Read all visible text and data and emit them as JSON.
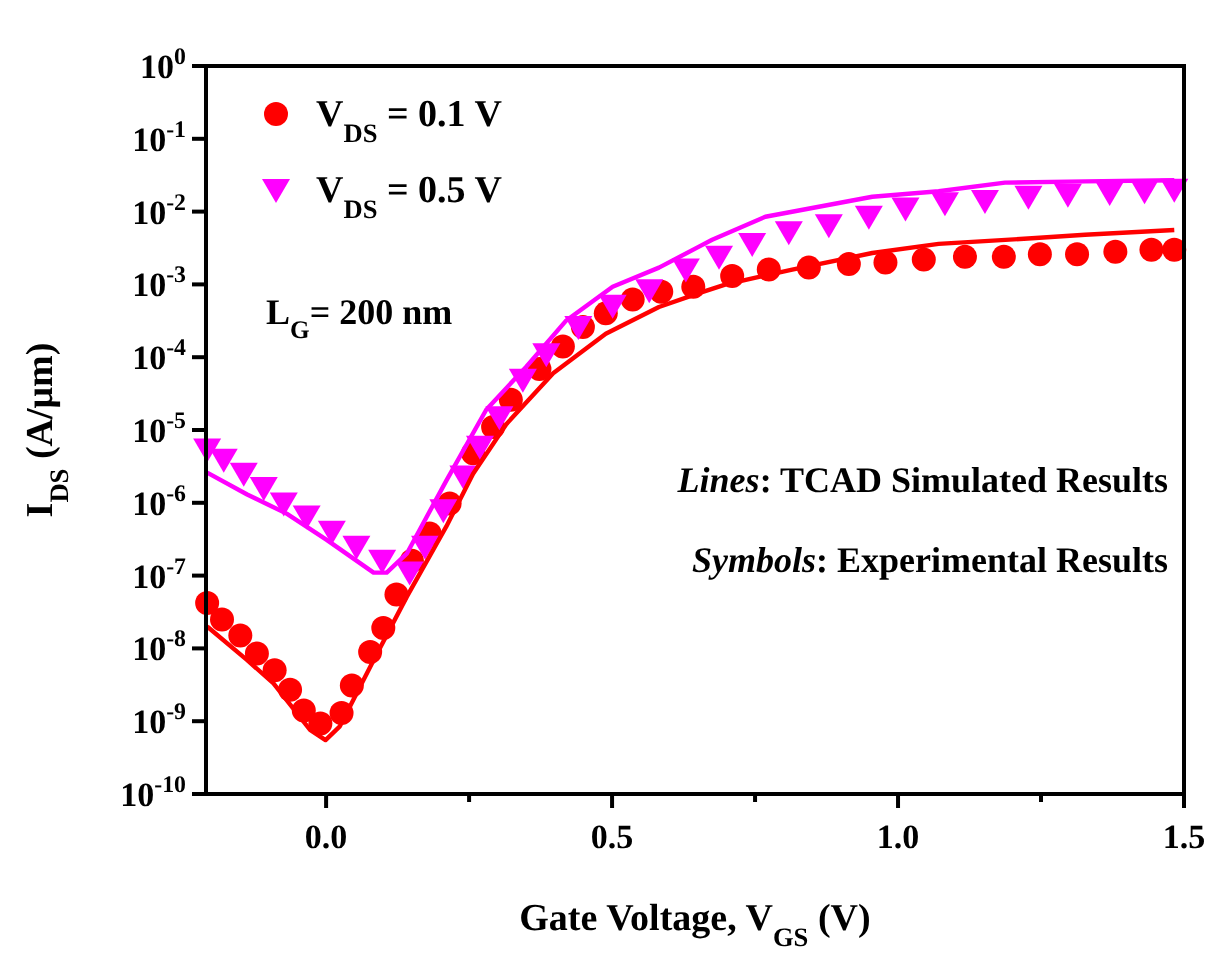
{
  "chart_data": {
    "type": "scatter",
    "xlabel": "Gate Voltage, V$_{GS}$ (V)",
    "ylabel": "I$_{DS}$ (A/μm)",
    "log": "y",
    "xlim": [
      -0.21,
      1.5
    ],
    "xticks": [
      {
        "value": 0,
        "label": "0.0"
      },
      {
        "value": 0.25,
        "label": null
      },
      {
        "value": 0.5,
        "label": "0.5"
      },
      {
        "value": 0.75,
        "label": null
      },
      {
        "value": 1,
        "label": "1.0"
      },
      {
        "value": 1.25,
        "label": null
      },
      {
        "value": 1.5,
        "label": "1.5"
      }
    ],
    "ylim": [
      1e-10,
      1
    ],
    "yticks": [
      {
        "value": 1,
        "label": "10$^{0}$"
      },
      {
        "value": 0.1,
        "label": "10$^{-1}$"
      },
      {
        "value": 0.01,
        "label": "10$^{-2}$"
      },
      {
        "value": 0.001,
        "label": "10$^{-3}$"
      },
      {
        "value": 0.0001,
        "label": "10$^{-4}$"
      },
      {
        "value": 1e-05,
        "label": "10$^{-5}$"
      },
      {
        "value": 1e-06,
        "label": "10$^{-6}$"
      },
      {
        "value": 1e-07,
        "label": "10$^{-7}$"
      },
      {
        "value": 1e-08,
        "label": "10$^{-8}$"
      },
      {
        "value": 1e-09,
        "label": "10$^{-9}$"
      },
      {
        "value": 1e-10,
        "label": "10$^{-10}$"
      }
    ],
    "grid": false,
    "legend": "top left",
    "annotations": [
      "L$_{G}$= 200 nm",
      "Lines: TCAD Simulated Results",
      "Symbols: Experimental Results"
    ],
    "series": [
      {
        "name": "V$_{DS}$ = 0.1 V",
        "marker": "circle",
        "color": "#ff0000",
        "x": [
          -0.208,
          -0.182,
          -0.15,
          -0.121,
          -0.09,
          -0.063,
          -0.039,
          -0.01,
          0.027,
          0.045,
          0.077,
          0.1,
          0.123,
          0.15,
          0.181,
          0.216,
          0.257,
          0.292,
          0.323,
          0.373,
          0.414,
          0.449,
          0.489,
          0.536,
          0.586,
          0.642,
          0.71,
          0.774,
          0.844,
          0.914,
          0.978,
          1.045,
          1.117,
          1.185,
          1.248,
          1.313,
          1.38,
          1.443,
          1.483
        ],
        "values": [
          4.2e-08,
          2.5e-08,
          1.5e-08,
          8.5e-09,
          5e-09,
          2.7e-09,
          1.4e-09,
          9.3e-10,
          1.3e-09,
          3.1e-09,
          8.9e-09,
          1.9e-08,
          5.5e-08,
          1.6e-07,
          3.8e-07,
          9.8e-07,
          4.8e-06,
          1.1e-05,
          2.6e-05,
          6.9e-05,
          0.00014,
          0.00026,
          0.0004,
          0.00062,
          0.00079,
          0.00093,
          0.0013,
          0.0016,
          0.0017,
          0.0019,
          0.002,
          0.0022,
          0.0024,
          0.0024,
          0.0026,
          0.0026,
          0.0028,
          0.003,
          0.003
        ]
      },
      {
        "name": "V$_{DS}$ = 0.5 V",
        "marker": "triangle",
        "color": "#ff00ff",
        "x": [
          -0.208,
          -0.179,
          -0.144,
          -0.109,
          -0.074,
          -0.034,
          0.01,
          0.053,
          0.098,
          0.146,
          0.173,
          0.205,
          0.24,
          0.269,
          0.303,
          0.344,
          0.385,
          0.441,
          0.501,
          0.565,
          0.629,
          0.687,
          0.745,
          0.809,
          0.879,
          0.949,
          1.013,
          1.082,
          1.152,
          1.228,
          1.297,
          1.37,
          1.431,
          1.483
        ],
        "values": [
          5.4e-06,
          3.9e-06,
          2.5e-06,
          1.6e-06,
          9.8e-07,
          6.5e-07,
          4e-07,
          2.5e-07,
          1.6e-07,
          1.1e-07,
          2.5e-07,
          7.9e-07,
          2.3e-06,
          5.9e-06,
          1.5e-05,
          4.9e-05,
          0.00011,
          0.00026,
          0.00051,
          0.00083,
          0.0016,
          0.0024,
          0.0036,
          0.0052,
          0.0065,
          0.0085,
          0.011,
          0.013,
          0.014,
          0.016,
          0.017,
          0.018,
          0.019,
          0.02
        ]
      },
      {
        "type": "line",
        "color": "#ff0000",
        "x": [
          -0.208,
          -0.138,
          -0.092,
          -0.028,
          -0.001,
          0.024,
          0.083,
          0.141,
          0.21,
          0.257,
          0.315,
          0.397,
          0.489,
          0.582,
          0.652,
          0.699,
          0.815,
          0.955,
          1.071,
          1.234,
          1.327,
          1.483
        ],
        "values": [
          2e-08,
          6.9e-09,
          3.3e-09,
          7.6e-10,
          5.5e-10,
          8.5e-10,
          6.9e-09,
          5.1e-08,
          4.7e-07,
          2.5e-06,
          1.2e-05,
          6e-05,
          0.00021,
          0.00049,
          0.00076,
          0.001,
          0.0016,
          0.0027,
          0.0036,
          0.0043,
          0.0048,
          0.0056
        ]
      },
      {
        "type": "line",
        "color": "#ff00ff",
        "x": [
          -0.208,
          -0.138,
          -0.069,
          0.001,
          0.083,
          0.106,
          0.141,
          0.21,
          0.28,
          0.35,
          0.42,
          0.501,
          0.582,
          0.652,
          0.675,
          0.768,
          0.955,
          1.071,
          1.187,
          1.327,
          1.483
        ],
        "values": [
          2.6e-06,
          1.3e-06,
          7.1e-07,
          3.1e-07,
          1.1e-07,
          1.1e-07,
          2e-07,
          2e-06,
          1.9e-05,
          7.4e-05,
          0.00032,
          0.00093,
          0.0017,
          0.0033,
          0.0041,
          0.0085,
          0.016,
          0.019,
          0.025,
          0.026,
          0.027
        ]
      }
    ]
  }
}
